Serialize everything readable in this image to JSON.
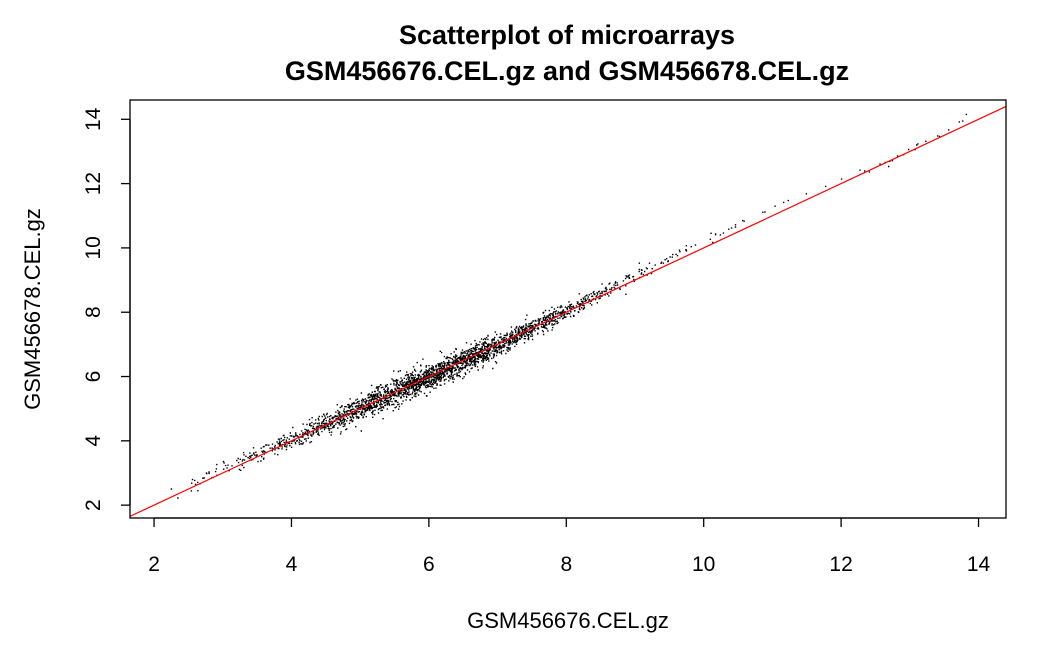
{
  "chart_data": {
    "type": "scatter",
    "title_line1": "Scatterplot of microarrays",
    "title_line2": "GSM456676.CEL.gz and GSM456678.CEL.gz",
    "xlabel": "GSM456676.CEL.gz",
    "ylabel": "GSM456678.CEL.gz",
    "xlim": [
      1.65,
      14.4
    ],
    "ylim": [
      1.6,
      14.6
    ],
    "xticks": [
      2,
      4,
      6,
      8,
      10,
      12,
      14
    ],
    "yticks": [
      2,
      4,
      6,
      8,
      10,
      12,
      14
    ],
    "xtick_labels": [
      "2",
      "4",
      "6",
      "8",
      "10",
      "12",
      "14"
    ],
    "ytick_labels": [
      "2",
      "4",
      "6",
      "8",
      "10",
      "12",
      "14"
    ],
    "point_color": "#000000",
    "reference_line": {
      "color": "#ff0000",
      "slope": 1,
      "intercept": 0,
      "x": [
        1.65,
        14.4
      ],
      "y": [
        1.65,
        14.4
      ]
    },
    "point_cloud_centerline": {
      "x": [
        2.1,
        3,
        4,
        5,
        6,
        7,
        8,
        9,
        10,
        11,
        12,
        13,
        13.9
      ],
      "y": [
        2.2,
        3.15,
        4.05,
        5.05,
        6.0,
        7.0,
        8.05,
        9.15,
        10.25,
        11.25,
        12.15,
        13.0,
        14.2
      ]
    },
    "approx_point_count": 45000,
    "grid": false,
    "legend": "none"
  }
}
